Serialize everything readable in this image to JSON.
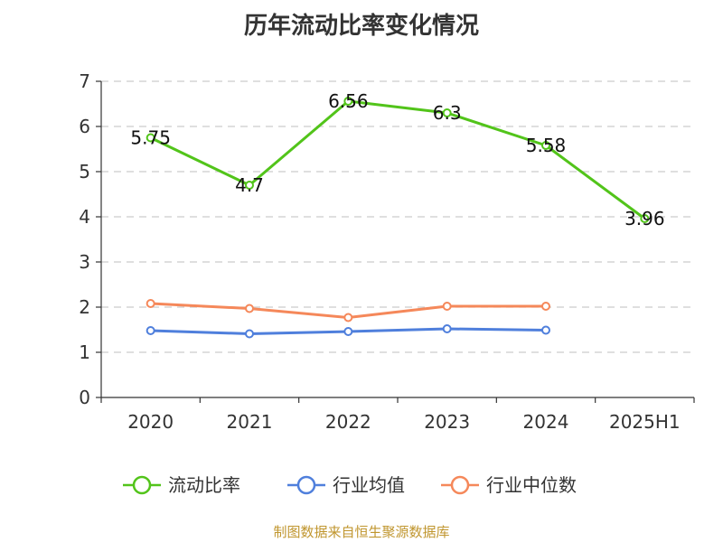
{
  "chart_data": {
    "type": "line",
    "title": "历年流动比率变化情况",
    "categories": [
      "2020",
      "2021",
      "2022",
      "2023",
      "2024",
      "2025H1"
    ],
    "ylim": [
      0,
      7
    ],
    "yticks": [
      0,
      1,
      2,
      3,
      4,
      5,
      6,
      7
    ],
    "grid": true,
    "legend_position": "bottom",
    "series": [
      {
        "name": "流动比率",
        "color": "#52c41a",
        "values": [
          5.75,
          4.7,
          6.56,
          6.3,
          5.58,
          3.96
        ],
        "labels": [
          "5.75",
          "4.7",
          "6.56",
          "6.3",
          "5.58",
          "3.96"
        ]
      },
      {
        "name": "行业均值",
        "color": "#4f7fdc",
        "values": [
          1.48,
          1.41,
          1.46,
          1.52,
          1.49,
          null
        ]
      },
      {
        "name": "行业中位数",
        "color": "#f5885a",
        "values": [
          2.08,
          1.97,
          1.77,
          2.02,
          2.02,
          null
        ]
      }
    ]
  },
  "source": "制图数据来自恒生聚源数据库"
}
